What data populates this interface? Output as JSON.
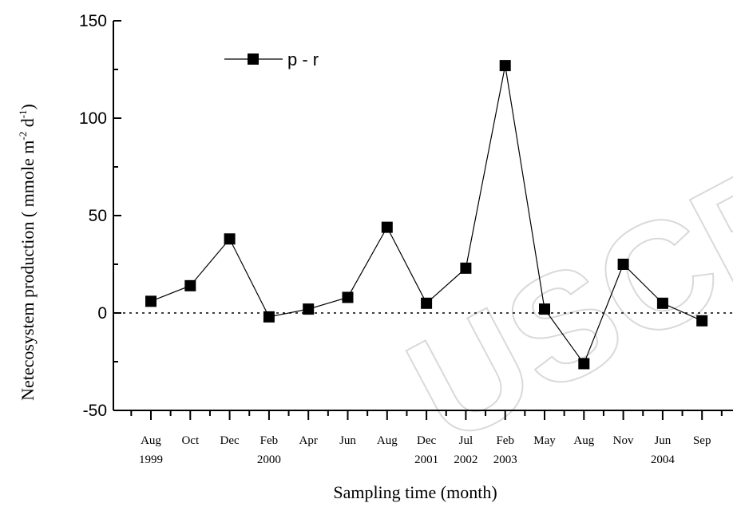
{
  "chart_data": {
    "type": "line",
    "title": "",
    "xlabel": "Sampling time (month)",
    "ylabel": "Netecosystem production ( mmole m",
    "ylabel_sup1": "-2",
    "ylabel_mid": " d",
    "ylabel_sup2": "-1",
    "ylabel_end": ")",
    "ylim": [
      -50,
      150
    ],
    "yticks": [
      -50,
      0,
      50,
      100,
      150
    ],
    "ytick_labels": [
      "-50",
      "0",
      "50",
      "100",
      "150"
    ],
    "grid": false,
    "legend_position": "top-left",
    "categories": [
      {
        "month": "Aug",
        "year": "1999"
      },
      {
        "month": "Oct",
        "year": ""
      },
      {
        "month": "Dec",
        "year": ""
      },
      {
        "month": "Feb",
        "year": "2000"
      },
      {
        "month": "Apr",
        "year": ""
      },
      {
        "month": "Jun",
        "year": ""
      },
      {
        "month": "Aug",
        "year": ""
      },
      {
        "month": "Dec",
        "year": "2001"
      },
      {
        "month": "Jul",
        "year": "2002"
      },
      {
        "month": "Feb",
        "year": "2003"
      },
      {
        "month": "May",
        "year": ""
      },
      {
        "month": "Aug",
        "year": ""
      },
      {
        "month": "Nov",
        "year": ""
      },
      {
        "month": "Jun",
        "year": "2004"
      },
      {
        "month": "Sep",
        "year": ""
      }
    ],
    "series": [
      {
        "name": "p - r",
        "marker": "square",
        "color": "#000000",
        "values": [
          6,
          14,
          38,
          -2,
          2,
          8,
          44,
          5,
          23,
          127,
          2,
          -26,
          25,
          5,
          -4
        ]
      }
    ],
    "reference_line": {
      "y": 0,
      "style": "dotted"
    },
    "watermark": "USCRI"
  }
}
